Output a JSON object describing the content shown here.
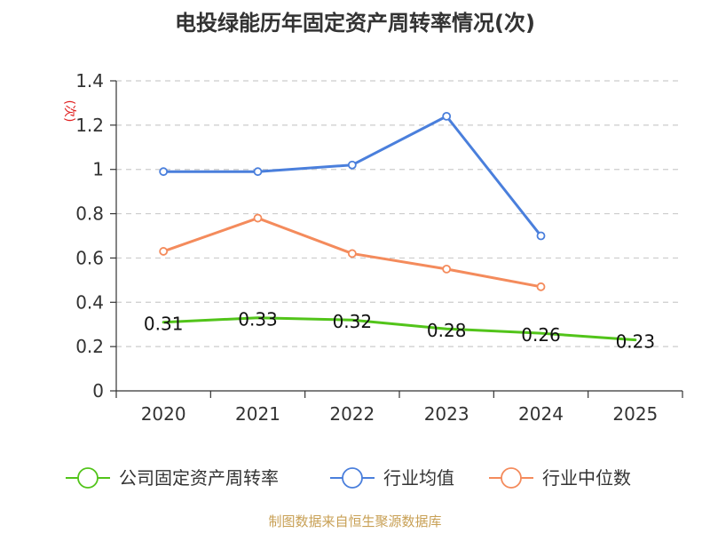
{
  "colors": {
    "company": "#52c41a",
    "industry_avg": "#4a7fdc",
    "industry_median": "#f48b5c",
    "axis": "#333333",
    "grid": "#cccccc",
    "unit": "#e02020",
    "source": "#c8a055"
  },
  "chart_data": {
    "type": "line",
    "title": "电投绿能历年固定资产周转率情况(次)",
    "unit_label": "(次)",
    "categories": [
      "2020",
      "2021",
      "2022",
      "2023",
      "2024",
      "2025"
    ],
    "ylim": [
      0,
      1.4
    ],
    "yticks": [
      0,
      0.2,
      0.4,
      0.6,
      0.8,
      1,
      1.2,
      1.4
    ],
    "ytick_labels": [
      "0",
      "0.2",
      "0.4",
      "0.6",
      "0.8",
      "1",
      "1.2",
      "1.4"
    ],
    "grid": true,
    "legend_position": "bottom",
    "series": [
      {
        "key": "company",
        "name": "公司固定资产周转率",
        "values": [
          0.31,
          0.33,
          0.32,
          0.28,
          0.26,
          0.23
        ],
        "labels": [
          "0.31",
          "0.33",
          "0.32",
          "0.28",
          "0.26",
          "0.23"
        ],
        "marker": false
      },
      {
        "key": "industry_avg",
        "name": "行业均值",
        "values": [
          0.99,
          0.99,
          1.02,
          1.24,
          0.7,
          null
        ],
        "marker": true
      },
      {
        "key": "industry_median",
        "name": "行业中位数",
        "values": [
          0.63,
          0.78,
          0.62,
          0.55,
          0.47,
          null
        ],
        "marker": true
      }
    ]
  },
  "footer": {
    "source": "制图数据来自恒生聚源数据库"
  }
}
